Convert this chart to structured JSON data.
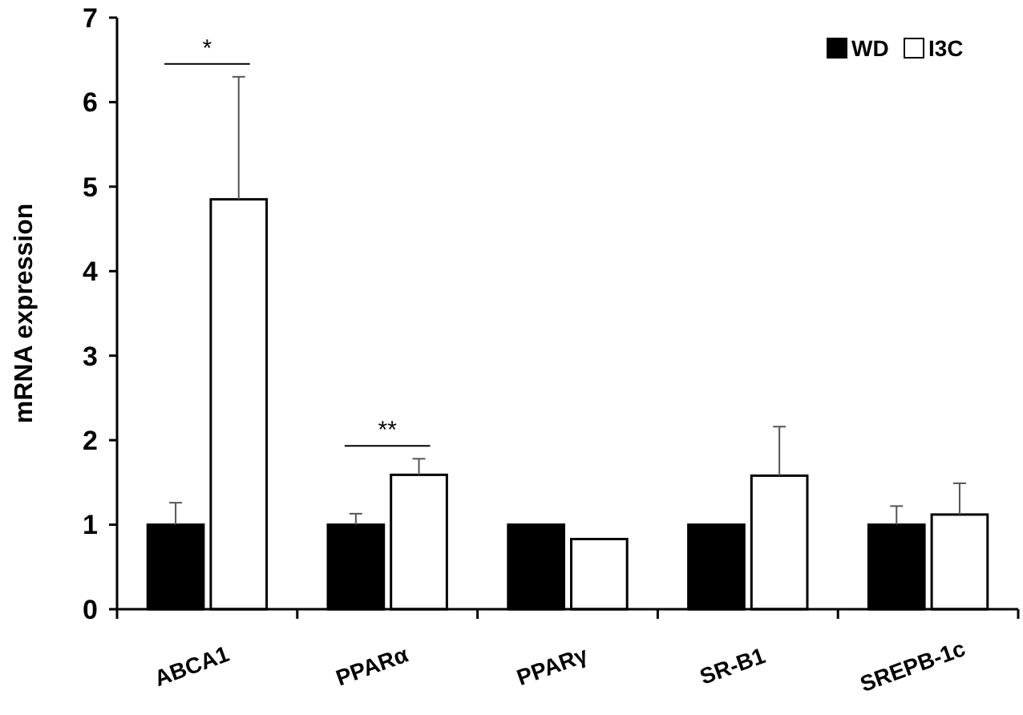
{
  "chart_data": {
    "type": "bar",
    "ylabel": "mRNA expression",
    "categories": [
      "ABCA1",
      "PPARα",
      "PPARγ",
      "SR-B1",
      "SREPB-1c"
    ],
    "series": [
      {
        "name": "WD",
        "color": "#000000",
        "values": [
          1,
          1,
          1,
          1,
          1
        ],
        "errors": [
          [
            1,
            1.26
          ],
          [
            1,
            1.13
          ],
          null,
          null,
          [
            1,
            1.22
          ]
        ]
      },
      {
        "name": "I3C",
        "color": "#ffffff",
        "values": [
          4.85,
          1.59,
          0.83,
          1.58,
          1.12
        ],
        "errors": [
          [
            4.85,
            6.3
          ],
          [
            1.59,
            1.78
          ],
          null,
          [
            1.58,
            2.16
          ],
          [
            1.12,
            1.49
          ]
        ]
      }
    ],
    "ylim": [
      0,
      7
    ],
    "yticks": [
      0,
      1,
      2,
      3,
      4,
      5,
      6,
      7
    ],
    "grid": false,
    "legend": "top right",
    "annotations": [
      "*",
      "**"
    ]
  }
}
